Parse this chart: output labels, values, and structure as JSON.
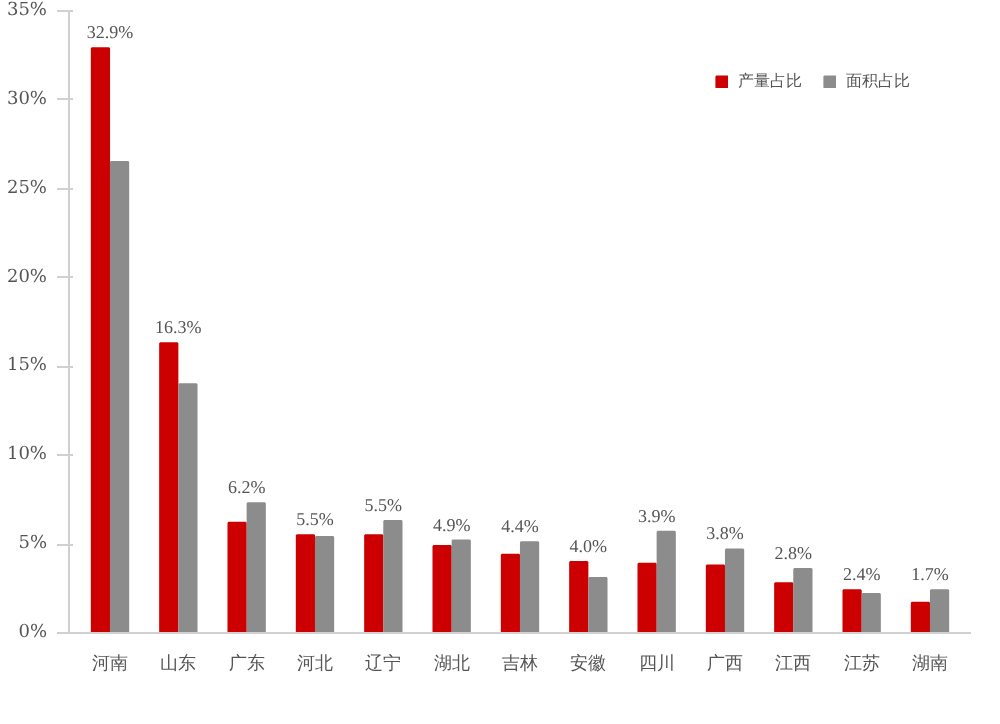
{
  "chart_data": {
    "type": "bar",
    "categories": [
      "河南",
      "山东",
      "广东",
      "河北",
      "辽宁",
      "湖北",
      "吉林",
      "安徽",
      "四川",
      "广西",
      "江西",
      "江苏",
      "湖南"
    ],
    "series": [
      {
        "name": "产量占比",
        "color": "#cc0000",
        "values": [
          32.9,
          16.3,
          6.2,
          5.5,
          5.5,
          4.9,
          4.4,
          4.0,
          3.9,
          3.8,
          2.8,
          2.4,
          1.7
        ],
        "value_labels": [
          "32.9%",
          "16.3%",
          "6.2%",
          "5.5%",
          "5.5%",
          "4.9%",
          "4.4%",
          "4.0%",
          "3.9%",
          "3.8%",
          "2.8%",
          "2.4%",
          "1.7%"
        ]
      },
      {
        "name": "面积占比",
        "color": "#8c8c8c",
        "values": [
          26.5,
          14.0,
          7.3,
          5.4,
          6.3,
          5.2,
          5.1,
          3.1,
          5.7,
          4.7,
          3.6,
          2.2,
          2.4
        ]
      }
    ],
    "ylim": [
      0,
      35
    ],
    "yticks": [
      {
        "value": 0,
        "label": "0%"
      },
      {
        "value": 5,
        "label": "5%"
      },
      {
        "value": 10,
        "label": "10%"
      },
      {
        "value": 15,
        "label": "15%"
      },
      {
        "value": 20,
        "label": "20%"
      },
      {
        "value": 25,
        "label": "25%"
      },
      {
        "value": 30,
        "label": "30%"
      },
      {
        "value": 35,
        "label": "35%"
      }
    ],
    "grid": false,
    "legend": "top right"
  }
}
